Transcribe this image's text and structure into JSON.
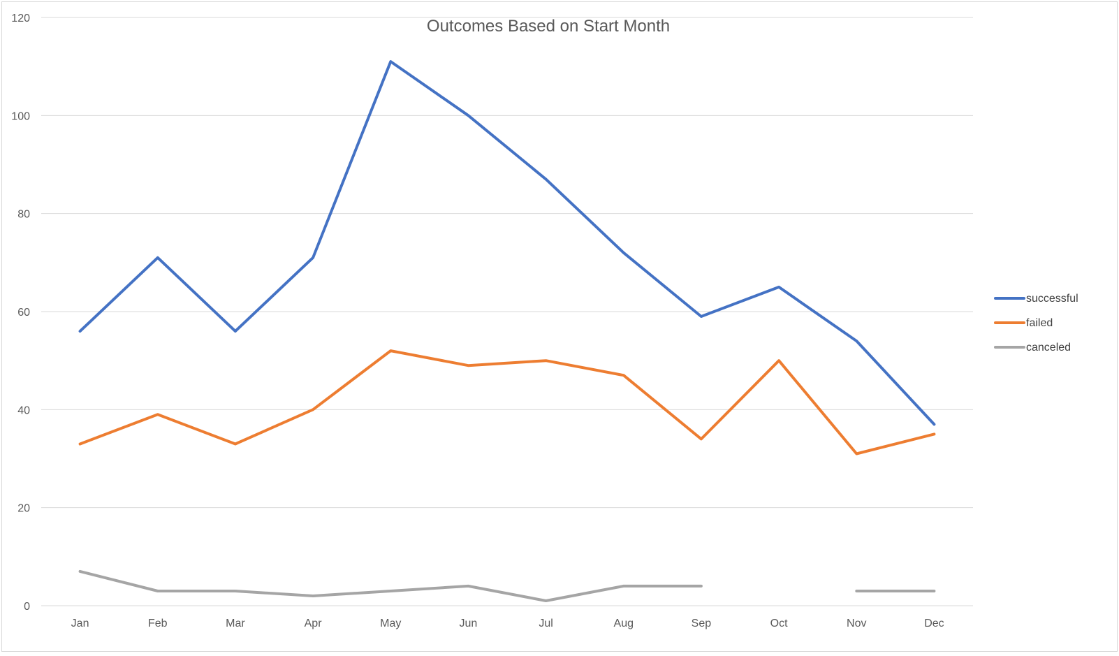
{
  "chart_data": {
    "type": "line",
    "title": "Outcomes Based on Start Month",
    "categories": [
      "Jan",
      "Feb",
      "Mar",
      "Apr",
      "May",
      "Jun",
      "Jul",
      "Aug",
      "Sep",
      "Oct",
      "Nov",
      "Dec"
    ],
    "series": [
      {
        "name": "successful",
        "color": "#4472C4",
        "values": [
          56,
          71,
          56,
          71,
          111,
          100,
          87,
          72,
          59,
          65,
          54,
          37
        ]
      },
      {
        "name": "failed",
        "color": "#ED7D31",
        "values": [
          33,
          39,
          33,
          40,
          52,
          49,
          50,
          47,
          34,
          50,
          31,
          35
        ]
      },
      {
        "name": "canceled",
        "color": "#A5A5A5",
        "values": [
          7,
          3,
          3,
          2,
          3,
          4,
          1,
          4,
          4,
          null,
          3,
          3
        ]
      }
    ],
    "ylim": [
      0,
      120
    ],
    "yticks": [
      0,
      20,
      40,
      60,
      80,
      100,
      120
    ],
    "xlabel": "",
    "ylabel": "",
    "grid": true,
    "legend_position": "right"
  }
}
